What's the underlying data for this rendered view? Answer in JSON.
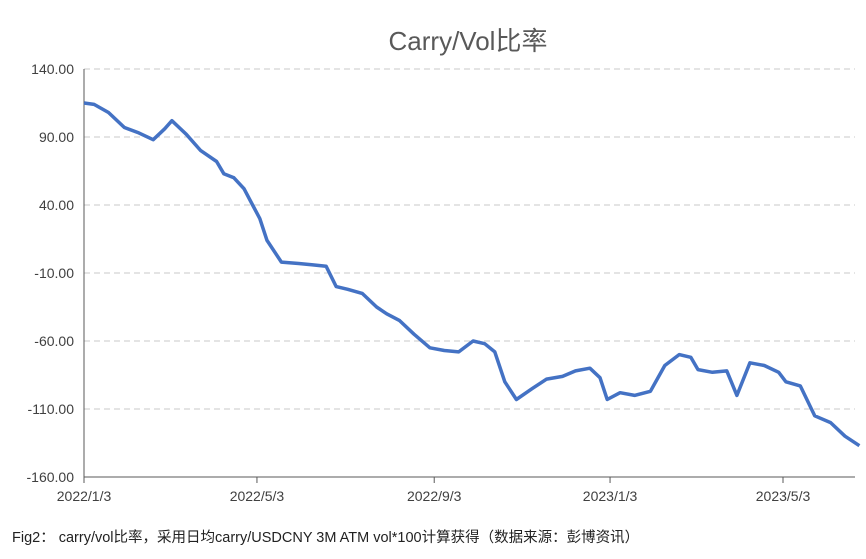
{
  "chart_data": {
    "type": "line",
    "title": "Carry/Vol比率",
    "xlabel": "",
    "ylabel": "",
    "ylim": [
      -150,
      140
    ],
    "yticks": [
      "140.00",
      "90.00",
      "40.00",
      "-10.00",
      "-60.00",
      "-110.00",
      "-160.00"
    ],
    "ytick_values": [
      140,
      90,
      40,
      -10,
      -60,
      -110,
      -160
    ],
    "xticks": [
      "2022/1/3",
      "2022/5/3",
      "2022/9/3",
      "2023/1/3",
      "2023/5/3"
    ],
    "xtick_dates": [
      "2022-01-03",
      "2022-05-03",
      "2022-09-03",
      "2023-01-03",
      "2023-05-03"
    ],
    "grid": "horizontal dashed",
    "line_color": "#4472C4",
    "series": [
      {
        "x": [
          "2022-01-03",
          "2022-01-10",
          "2022-01-20",
          "2022-01-31",
          "2022-02-10",
          "2022-02-20",
          "2022-02-28",
          "2022-03-05",
          "2022-03-15",
          "2022-03-25",
          "2022-04-05",
          "2022-04-10",
          "2022-04-17",
          "2022-04-24",
          "2022-04-30",
          "2022-05-05",
          "2022-05-10",
          "2022-05-20",
          "2022-06-01",
          "2022-06-10",
          "2022-06-20",
          "2022-06-27",
          "2022-07-05",
          "2022-07-15",
          "2022-07-25",
          "2022-08-01",
          "2022-08-10",
          "2022-08-20",
          "2022-08-31",
          "2022-09-10",
          "2022-09-20",
          "2022-09-30",
          "2022-10-08",
          "2022-10-15",
          "2022-10-22",
          "2022-10-30",
          "2022-11-10",
          "2022-11-20",
          "2022-12-01",
          "2022-12-10",
          "2022-12-20",
          "2022-12-27",
          "2023-01-01",
          "2023-01-10",
          "2023-01-20",
          "2023-01-31",
          "2023-02-10",
          "2023-02-20",
          "2023-02-28",
          "2023-03-05",
          "2023-03-15",
          "2023-03-25",
          "2023-04-01",
          "2023-04-10",
          "2023-04-20",
          "2023-04-30",
          "2023-05-05",
          "2023-05-15",
          "2023-05-25",
          "2023-06-05",
          "2023-06-15",
          "2023-06-25"
        ],
        "values": [
          115,
          114,
          108,
          97,
          93,
          88,
          96,
          102,
          92,
          80,
          72,
          63,
          60,
          52,
          40,
          30,
          14,
          -2,
          -3,
          -4,
          -5,
          -20,
          -22,
          -25,
          -35,
          -40,
          -45,
          -55,
          -65,
          -67,
          -68,
          -60,
          -62,
          -68,
          -90,
          -103,
          -95,
          -88,
          -86,
          -82,
          -80,
          -87,
          -103,
          -98,
          -100,
          -97,
          -78,
          -70,
          -72,
          -81,
          -83,
          -82,
          -100,
          -76,
          -78,
          -83,
          -90,
          -93,
          -115,
          -120,
          -130,
          -137
        ]
      }
    ]
  },
  "caption": "Fig2： carry/vol比率，采用日均carry/USDCNY 3M ATM vol*100计算获得（数据来源：彭博资讯）"
}
